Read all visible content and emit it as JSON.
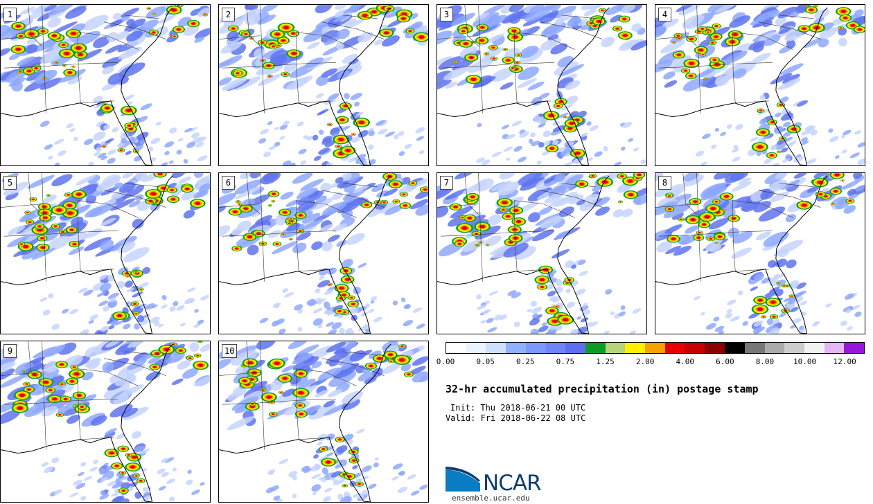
{
  "panels": [
    "1",
    "2",
    "3",
    "4",
    "5",
    "6",
    "7",
    "8",
    "9",
    "10"
  ],
  "colorbar": {
    "colors": [
      "#ffffff",
      "#eaf4ff",
      "#cfe0ff",
      "#8fb1ff",
      "#7c97ff",
      "#6f85f7",
      "#5f6ef0",
      "#0c9c25",
      "#b7d47a",
      "#fff000",
      "#f4a300",
      "#e60000",
      "#c40000",
      "#8b0000",
      "#000000",
      "#777777",
      "#aaaaaa",
      "#cccccc",
      "#f2f2f2",
      "#e5b6f4",
      "#9617d9"
    ],
    "labels": [
      "0.00",
      "0.05",
      "0.25",
      "0.75",
      "1.25",
      "2.00",
      "4.00",
      "6.00",
      "8.00",
      "10.00",
      "12.00"
    ]
  },
  "title": "32-hr accumulated precipitation (in) postage stamp",
  "init": "Init: Thu 2018-06-21 00 UTC",
  "valid": "Valid: Fri 2018-06-22 08 UTC",
  "logo": {
    "text": "NCAR",
    "site": "ensemble.ucar.edu",
    "colors": [
      "#0a7dc2",
      "#0f3e6e"
    ]
  }
}
